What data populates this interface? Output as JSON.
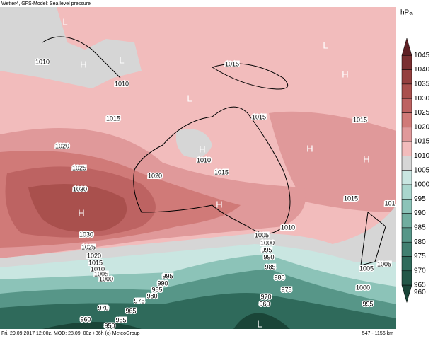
{
  "header": {
    "title": "Wetter4, GFS-Model: Sea level pressure"
  },
  "footer": {
    "text": "Fri, 29.09.2017 12:00z, MOD: 28.09. 00z +36h (c) MeteoGroup",
    "scale_bar": "547 - 1156 km"
  },
  "colorbar": {
    "unit": "hPa",
    "levels": [
      1045,
      1040,
      1035,
      1030,
      1025,
      1020,
      1015,
      1010,
      1005,
      1000,
      995,
      990,
      985,
      980,
      975,
      970,
      965,
      960
    ],
    "colors": [
      "#5e2024",
      "#7a2f31",
      "#94403f",
      "#a9504d",
      "#bd6362",
      "#d07a78",
      "#e0999a",
      "#f2bcbc",
      "#d6d6d6",
      "#c9e6e1",
      "#a9d6cd",
      "#8cc3b8",
      "#70ad9f",
      "#579688",
      "#417f70",
      "#2f6a5b",
      "#235748",
      "#1a4538"
    ]
  },
  "contour_labels": [
    1010,
    1010,
    1015,
    1015,
    1015,
    1015,
    1020,
    1025,
    1030,
    1020,
    1010,
    1015,
    1015,
    1030,
    1025,
    1020,
    1015,
    1010,
    1005,
    1000,
    1005,
    1000,
    995,
    990,
    985,
    980,
    975,
    1010,
    1005,
    1005,
    1000,
    995,
    995,
    990,
    985,
    980,
    975,
    970,
    965,
    960,
    955,
    950,
    970,
    960,
    101
  ],
  "pressure_centers": [
    "L",
    "H",
    "L",
    "L",
    "H",
    "H",
    "L",
    "H",
    "H",
    "H",
    "H",
    "L"
  ]
}
